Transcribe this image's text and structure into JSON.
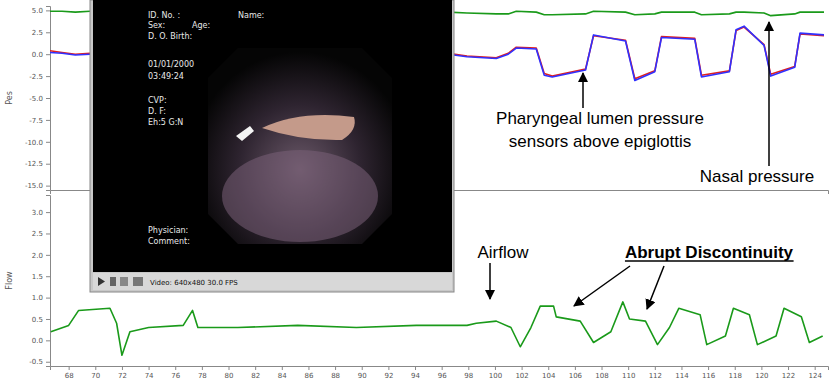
{
  "chart_data": [
    {
      "type": "line",
      "y_label": "Pes",
      "xlim": [
        66.6,
        125
      ],
      "ylim": [
        -15.5,
        5.5
      ],
      "yticks": [
        {
          "value": 5,
          "label": "5.0"
        },
        2.5,
        {
          "value": 0,
          "label": "0.0"
        },
        -2.5,
        {
          "value": -5,
          "label": "-5.0"
        },
        -7.5,
        {
          "value": -10,
          "label": "-10.0"
        },
        -12.5,
        {
          "value": -15,
          "label": "-15.0"
        }
      ],
      "tick_labels": "y",
      "x": [
        66.6,
        67.5,
        68.5,
        69.6,
        83,
        96.5,
        97.9,
        100.1,
        101.0,
        101.6,
        103.1,
        103.7,
        104.3,
        106.8,
        107.4,
        109.8,
        110.5,
        112.0,
        112.5,
        115.0,
        115.5,
        117.6,
        118.1,
        118.7,
        120.2,
        120.7,
        122.5,
        122.9,
        124.7
      ],
      "series": [
        {
          "color": "#e02020",
          "values": [
            0.4,
            0.2,
            0.0,
            0.1,
            null,
            0.1,
            -0.2,
            -0.4,
            0.1,
            0.8,
            0.7,
            -2.2,
            -2.5,
            -1.7,
            2.1,
            1.6,
            -2.8,
            -1.9,
            2.0,
            1.8,
            -2.4,
            -1.9,
            2.7,
            3.1,
            1.1,
            -2.3,
            -1.4,
            2.3,
            2.1
          ]
        },
        {
          "color": "#3030ff",
          "values": [
            0.2,
            0.1,
            -0.1,
            0.0,
            null,
            0.0,
            -0.3,
            -0.5,
            0.0,
            0.7,
            0.6,
            -2.4,
            -2.6,
            -1.8,
            2.2,
            1.5,
            -3.0,
            -2.0,
            1.9,
            1.7,
            -2.6,
            -2.0,
            2.8,
            3.2,
            1.0,
            -2.5,
            -1.5,
            2.4,
            2.2
          ]
        },
        {
          "color": "#1a9a1a",
          "values": [
            4.9,
            4.9,
            4.8,
            4.9,
            null,
            4.8,
            4.7,
            4.6,
            4.6,
            4.9,
            4.8,
            4.5,
            4.5,
            4.6,
            4.9,
            4.8,
            4.5,
            4.6,
            4.8,
            4.8,
            4.5,
            4.6,
            4.8,
            4.8,
            4.7,
            4.4,
            4.6,
            4.8,
            4.8
          ]
        }
      ]
    },
    {
      "type": "line",
      "y_label": "Flow",
      "xlim": [
        66.6,
        125
      ],
      "ylim": [
        -0.6,
        3.4
      ],
      "yticks": [
        -0.5,
        {
          "value": 0,
          "label": "0.0"
        },
        0.5,
        {
          "value": 1,
          "label": "1.0"
        },
        1.5,
        {
          "value": 2,
          "label": "2.0"
        },
        2.5,
        {
          "value": 3,
          "label": "3.0"
        }
      ],
      "xticks": [
        68,
        70,
        72,
        74,
        76,
        78,
        80,
        82,
        84,
        86,
        88,
        90,
        92,
        94,
        96,
        98,
        100,
        102,
        104,
        106,
        108,
        110,
        112,
        114,
        116,
        118,
        120,
        122,
        124
      ],
      "x": [
        66.66,
        68.0,
        68.75,
        71.1,
        71.6,
        72.0,
        72.6,
        74.0,
        76.6,
        77.3,
        77.7,
        80.7,
        85.2,
        89.6,
        94.1,
        97.9,
        98.6,
        100.1,
        101.2,
        101.9,
        102.7,
        103.4,
        104.4,
        104.6,
        106.4,
        107.4,
        108.7,
        109.6,
        110.1,
        111.3,
        112.2,
        113.1,
        113.8,
        115.4,
        115.9,
        117.3,
        117.9,
        119.1,
        119.7,
        121.1,
        121.7,
        123.0,
        123.6,
        124.6
      ],
      "series": [
        {
          "color": "#1a9a1a",
          "values": [
            0.2,
            0.35,
            0.7,
            0.75,
            0.4,
            -0.35,
            0.2,
            0.3,
            0.35,
            0.7,
            0.3,
            0.3,
            0.35,
            0.3,
            0.35,
            0.35,
            0.4,
            0.45,
            0.3,
            -0.15,
            0.3,
            0.8,
            0.8,
            0.55,
            0.45,
            -0.05,
            0.2,
            0.9,
            0.5,
            0.45,
            -0.1,
            0.3,
            0.75,
            0.6,
            -0.1,
            0.1,
            0.75,
            0.6,
            -0.1,
            0.1,
            0.75,
            0.55,
            -0.05,
            0.1
          ]
        }
      ]
    }
  ],
  "video_window": {
    "texts": [
      "ID. No. :",
      "Name:",
      "Sex:",
      "Age:",
      "D. O. Birth:",
      "01/01/2000",
      "03:49:24",
      "CVP:",
      "D. F:",
      "Eh:5 G:N",
      "Physician:",
      "Comment:"
    ],
    "footer": "Video: 640x480 30.0 FPS"
  },
  "annotations": [
    {
      "lines": [
        "Pharyngeal lumen pressure",
        "sensors above epiglottis"
      ]
    },
    {
      "lines": [
        "Nasal pressure"
      ]
    },
    {
      "lines": [
        "Airflow"
      ]
    },
    {
      "lines": [
        "Abrupt Discontinuity"
      ]
    }
  ]
}
